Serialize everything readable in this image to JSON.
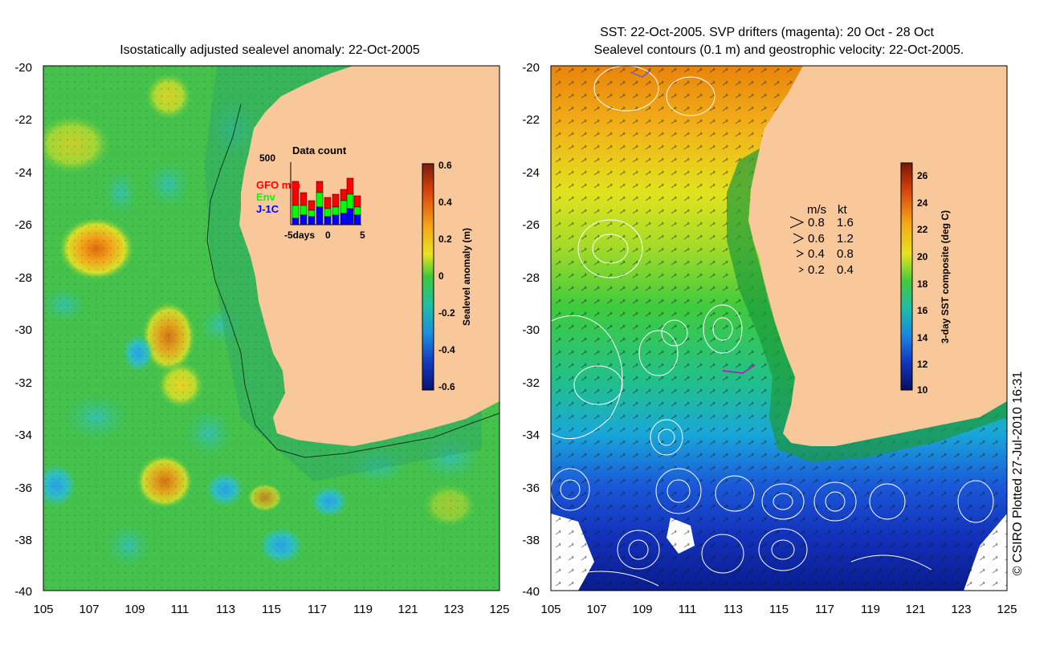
{
  "left_panel": {
    "title": "Isostatically adjusted sealevel anomaly: 22-Oct-2005",
    "y_ticks": [
      "-20",
      "-22",
      "-24",
      "-26",
      "-28",
      "-30",
      "-32",
      "-34",
      "-36",
      "-38",
      "-40"
    ],
    "x_ticks": [
      "105",
      "107",
      "109",
      "111",
      "113",
      "115",
      "117",
      "119",
      "121",
      "123",
      "125"
    ],
    "colorbar": {
      "label": "Sealevel anomaly (m)",
      "ticks": [
        "0.6",
        "0.4",
        "0.2",
        "0",
        "-0.2",
        "-0.4",
        "-0.6"
      ]
    },
    "inset": {
      "title": "Data count",
      "ymax_label": "500",
      "x_label_left": "-5days",
      "x_label_mid": "0",
      "x_label_right": "5",
      "legend": [
        {
          "name": "GFO mm",
          "color": "#ff0000"
        },
        {
          "name": "Env",
          "color": "#00ff00"
        },
        {
          "name": "J-1C",
          "color": "#0000ff"
        }
      ]
    }
  },
  "right_panel": {
    "title_line1": "SST: 22-Oct-2005. SVP drifters (magenta): 20 Oct - 28 Oct",
    "title_line2": "Sealevel contours (0.1 m) and geostrophic velocity: 22-Oct-2005.",
    "y_ticks": [
      "-20",
      "-22",
      "-24",
      "-26",
      "-28",
      "-30",
      "-32",
      "-34",
      "-36",
      "-38",
      "-40"
    ],
    "x_ticks": [
      "105",
      "107",
      "109",
      "111",
      "113",
      "115",
      "117",
      "119",
      "121",
      "123",
      "125"
    ],
    "colorbar": {
      "label": "3-day SST composite (deg C)",
      "ticks": [
        "26",
        "24",
        "22",
        "20",
        "18",
        "16",
        "14",
        "12",
        "10"
      ]
    },
    "velocity_legend": {
      "header_ms": "m/s",
      "header_kt": "kt",
      "rows": [
        {
          "ms": "0.8",
          "kt": "1.6"
        },
        {
          "ms": "0.6",
          "kt": "1.2"
        },
        {
          "ms": "0.4",
          "kt": "0.8"
        },
        {
          "ms": "0.2",
          "kt": "0.4"
        }
      ]
    },
    "credit": "© CSIRO Plotted 27-Jul-2010 16:31"
  },
  "colors": {
    "land": "#f9c89a",
    "ocean_green": "#33c24a",
    "coast_green": "#1fa35a"
  }
}
